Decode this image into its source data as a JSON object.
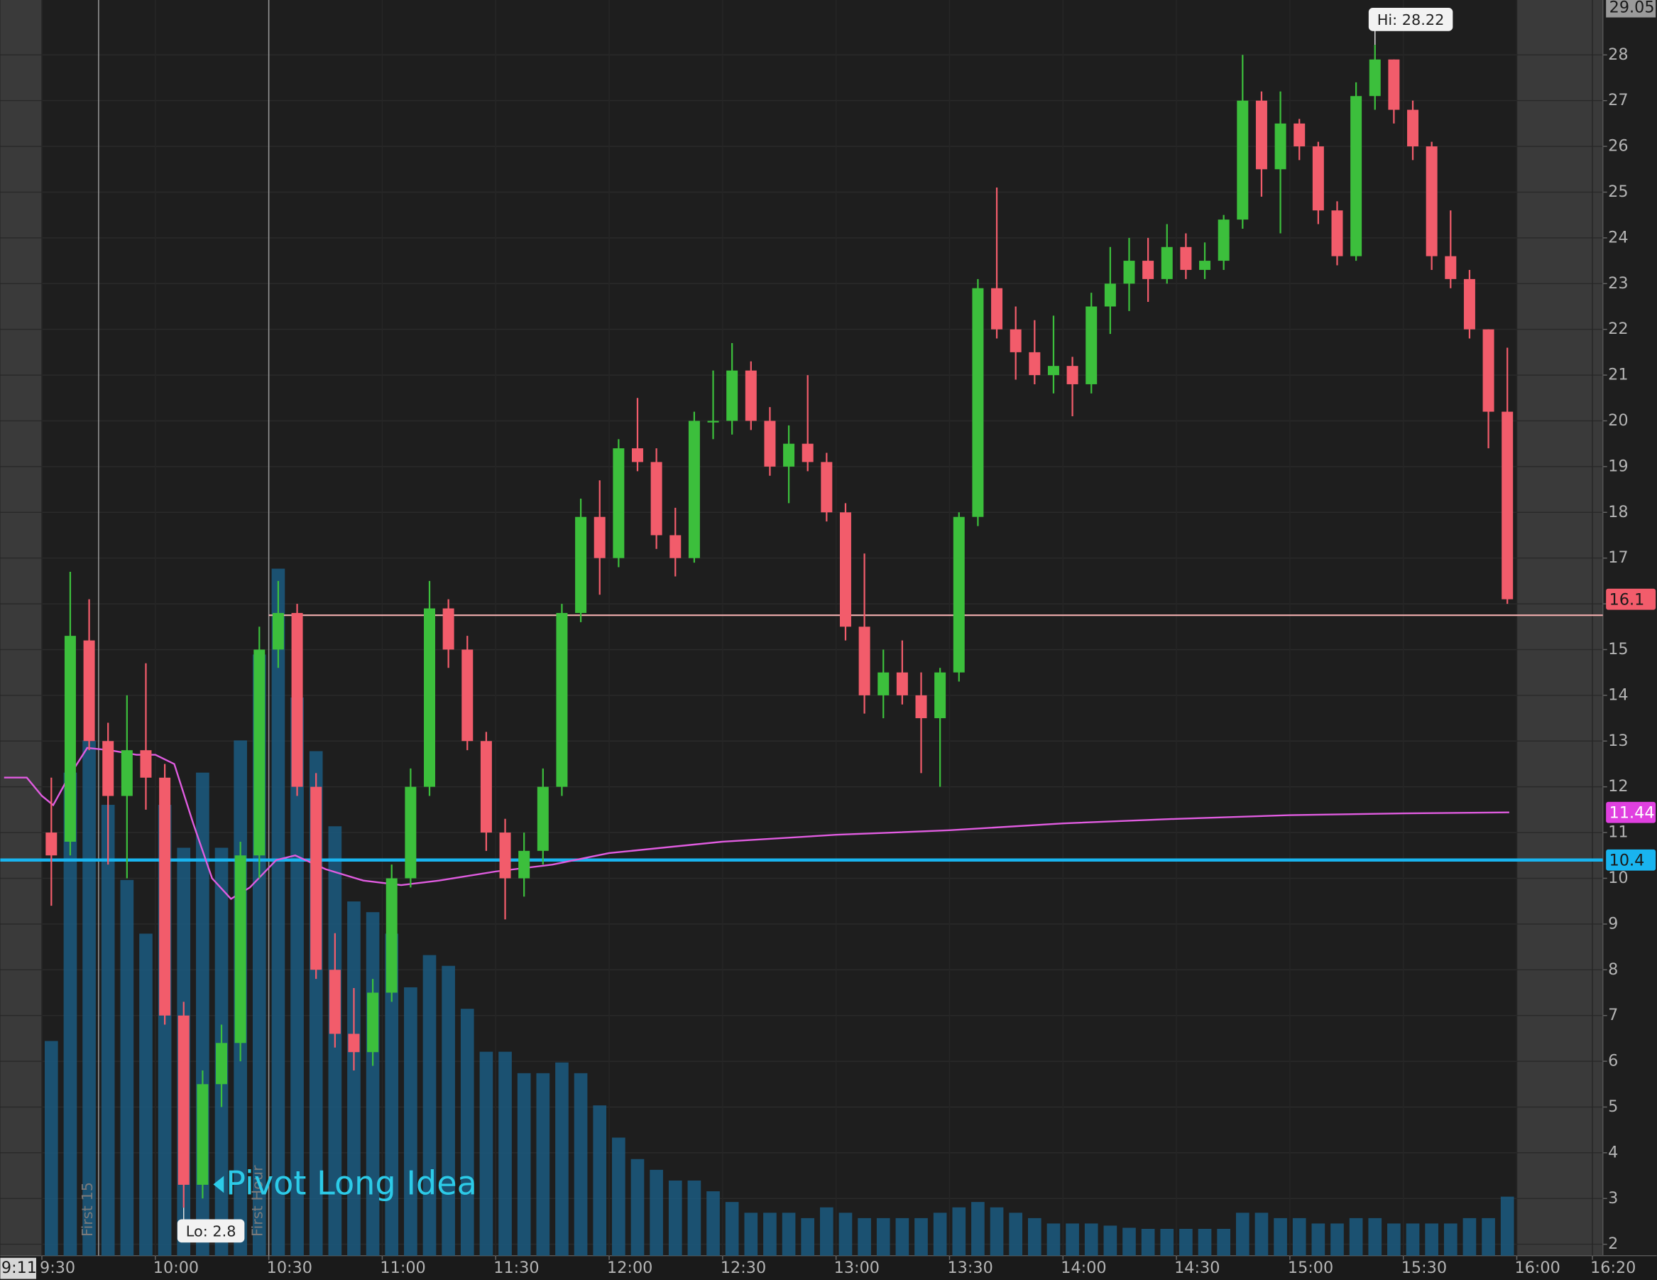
{
  "chart_data": {
    "type": "candlestick",
    "x": [
      "9:30",
      "9:35",
      "9:40",
      "9:45",
      "9:50",
      "9:55",
      "10:00",
      "10:05",
      "10:10",
      "10:15",
      "10:20",
      "10:25",
      "10:30",
      "10:35",
      "10:40",
      "10:45",
      "10:50",
      "10:55",
      "11:00",
      "11:05",
      "11:10",
      "11:15",
      "11:20",
      "11:25",
      "11:30",
      "11:35",
      "11:40",
      "11:45",
      "11:50",
      "11:55",
      "12:00",
      "12:05",
      "12:10",
      "12:15",
      "12:20",
      "12:25",
      "12:30",
      "12:35",
      "12:40",
      "12:45",
      "12:50",
      "12:55",
      "13:00",
      "13:05",
      "13:10",
      "13:15",
      "13:20",
      "13:25",
      "13:30",
      "13:35",
      "13:40",
      "13:45",
      "13:50",
      "13:55",
      "14:00",
      "14:05",
      "14:10",
      "14:15",
      "14:20",
      "14:25",
      "14:30",
      "14:35",
      "14:40",
      "14:45",
      "14:50",
      "14:55",
      "15:00",
      "15:05",
      "15:10",
      "15:15",
      "15:20",
      "15:25",
      "15:30",
      "15:35",
      "15:40",
      "15:45",
      "15:50",
      "15:55"
    ],
    "open": [
      11.0,
      10.8,
      15.2,
      13.0,
      11.8,
      12.8,
      12.2,
      7.0,
      3.3,
      5.5,
      6.4,
      10.5,
      15.0,
      15.8,
      12.0,
      8.0,
      6.6,
      6.2,
      7.5,
      10.0,
      12.0,
      15.9,
      15.0,
      13.0,
      11.0,
      10.0,
      10.6,
      12.0,
      15.8,
      17.9,
      17.0,
      19.4,
      19.1,
      17.5,
      17.0,
      20.0,
      20.0,
      21.1,
      20.0,
      19.0,
      19.5,
      19.1,
      18.0,
      15.5,
      14.0,
      14.5,
      14.0,
      13.5,
      14.5,
      17.9,
      22.9,
      22.0,
      21.5,
      21.0,
      21.2,
      20.8,
      22.5,
      23.0,
      23.5,
      23.1,
      23.8,
      23.3,
      23.5,
      24.4,
      27.0,
      25.5,
      26.5,
      26.0,
      24.6,
      23.6,
      27.1,
      27.9,
      26.8,
      26.0,
      23.6,
      23.1,
      22.0,
      20.2
    ],
    "high": [
      12.2,
      16.7,
      16.1,
      13.4,
      14.0,
      14.7,
      12.5,
      7.3,
      5.8,
      6.8,
      10.8,
      15.5,
      16.5,
      16.0,
      12.3,
      8.8,
      7.6,
      7.8,
      10.3,
      12.4,
      16.5,
      16.1,
      15.3,
      13.2,
      11.3,
      11.0,
      12.4,
      16.0,
      18.3,
      18.7,
      19.6,
      20.5,
      19.4,
      18.1,
      20.2,
      21.1,
      21.7,
      21.3,
      20.3,
      19.9,
      21.0,
      19.3,
      18.2,
      17.1,
      15.0,
      15.2,
      14.5,
      14.6,
      18.0,
      23.1,
      25.1,
      22.5,
      22.2,
      22.3,
      21.4,
      22.8,
      23.8,
      24.0,
      24.0,
      24.3,
      24.1,
      23.9,
      24.5,
      28.0,
      27.2,
      27.2,
      26.6,
      26.1,
      24.8,
      27.4,
      28.22,
      27.9,
      27.0,
      26.1,
      24.6,
      23.3,
      22.0,
      21.6
    ],
    "low": [
      9.4,
      10.5,
      12.8,
      10.3,
      10.0,
      11.5,
      6.8,
      2.8,
      3.0,
      5.0,
      6.0,
      10.0,
      14.6,
      11.8,
      7.8,
      6.3,
      5.8,
      5.9,
      7.3,
      9.8,
      11.8,
      14.6,
      12.8,
      10.6,
      9.1,
      9.6,
      10.3,
      11.8,
      15.6,
      16.2,
      16.8,
      18.9,
      17.2,
      16.6,
      16.9,
      19.6,
      19.7,
      19.8,
      18.8,
      18.2,
      18.9,
      17.8,
      15.2,
      13.6,
      13.5,
      13.8,
      12.3,
      12.0,
      14.3,
      17.7,
      21.8,
      20.9,
      20.8,
      20.6,
      20.1,
      20.6,
      21.9,
      22.4,
      22.6,
      23.0,
      23.1,
      23.1,
      23.3,
      24.2,
      24.9,
      24.1,
      25.7,
      24.3,
      23.4,
      23.5,
      26.8,
      26.5,
      25.7,
      23.3,
      22.9,
      21.8,
      19.4,
      16.0
    ],
    "close": [
      10.5,
      15.3,
      13.0,
      11.8,
      12.8,
      12.2,
      7.0,
      3.3,
      5.5,
      6.4,
      10.5,
      15.0,
      15.8,
      12.0,
      8.0,
      6.6,
      6.2,
      7.5,
      10.0,
      12.0,
      15.9,
      15.0,
      13.0,
      11.0,
      10.0,
      10.6,
      12.0,
      15.8,
      17.9,
      17.0,
      19.4,
      19.1,
      17.5,
      17.0,
      20.0,
      20.0,
      21.1,
      20.0,
      19.0,
      19.5,
      19.1,
      18.0,
      15.5,
      14.0,
      14.5,
      14.0,
      13.5,
      14.5,
      17.9,
      22.9,
      22.0,
      21.5,
      21.0,
      21.2,
      20.8,
      22.5,
      23.0,
      23.5,
      23.1,
      23.8,
      23.3,
      23.5,
      24.4,
      27.0,
      25.5,
      26.5,
      26.0,
      24.6,
      23.6,
      27.1,
      27.9,
      26.8,
      26.0,
      23.6,
      23.1,
      22.0,
      20.2,
      16.1
    ],
    "volume": [
      200,
      450,
      480,
      420,
      350,
      300,
      420,
      380,
      450,
      380,
      480,
      560,
      640,
      520,
      470,
      400,
      330,
      320,
      300,
      250,
      280,
      270,
      230,
      190,
      190,
      170,
      170,
      180,
      170,
      140,
      110,
      90,
      80,
      70,
      70,
      60,
      50,
      40,
      40,
      40,
      35,
      45,
      40,
      35,
      35,
      35,
      35,
      40,
      45,
      50,
      45,
      40,
      35,
      30,
      30,
      30,
      28,
      26,
      25,
      25,
      25,
      25,
      25,
      40,
      40,
      35,
      35,
      30,
      30,
      35,
      35,
      30,
      30,
      30,
      30,
      35,
      35,
      55
    ],
    "up_color": "#3cbf3c",
    "down_color": "#f25c6b",
    "volume_color": "#1b5a80",
    "xlim": [
      "9:19",
      "16:37"
    ],
    "xticks": [
      "9:30",
      "10:00",
      "10:30",
      "11:00",
      "11:30",
      "12:00",
      "12:30",
      "13:00",
      "13:30",
      "14:00",
      "14:30",
      "15:00",
      "15:30",
      "16:00",
      "16:20"
    ],
    "session": [
      "9:30",
      "16:00"
    ],
    "ylim": [
      1.75,
      29.2
    ],
    "yticks": [
      2,
      3,
      4,
      5,
      6,
      7,
      8,
      9,
      10,
      11,
      12,
      13,
      14,
      15,
      16,
      17,
      18,
      19,
      20,
      21,
      22,
      23,
      24,
      25,
      26,
      27,
      28
    ],
    "grid": true,
    "vwap": {
      "color": "#e05ce0",
      "x": [
        "9:20",
        "9:26",
        "9:30",
        "9:33",
        "9:37",
        "9:42",
        "9:48",
        "9:55",
        "10:00",
        "10:05",
        "10:10",
        "10:15",
        "10:20",
        "10:25",
        "10:32",
        "10:37",
        "10:45",
        "10:55",
        "11:05",
        "11:15",
        "11:30",
        "11:45",
        "12:00",
        "12:30",
        "13:00",
        "13:30",
        "14:00",
        "14:30",
        "15:00",
        "15:30",
        "15:58"
      ],
      "values": [
        12.2,
        12.2,
        11.8,
        11.6,
        12.2,
        12.85,
        12.8,
        12.7,
        12.7,
        12.5,
        11.2,
        10.0,
        9.55,
        9.8,
        10.4,
        10.5,
        10.2,
        9.95,
        9.85,
        9.95,
        10.15,
        10.3,
        10.55,
        10.8,
        10.95,
        11.05,
        11.2,
        11.3,
        11.38,
        11.42,
        11.44
      ]
    },
    "levels": [
      {
        "value": 10.4,
        "color": "#19b4ef",
        "from": "9:19"
      },
      {
        "value": 15.75,
        "color": "#e8a8a8",
        "from": "10:30"
      }
    ],
    "price_tags": [
      {
        "value": 16.1,
        "color": "#f25c6b"
      },
      {
        "value": 11.44,
        "color": "#e040e0"
      },
      {
        "value": 10.4,
        "color": "#19b4ef"
      }
    ],
    "cursor_price": 29.05,
    "cursor_time": "9:11",
    "hi": {
      "value": 28.22,
      "label": "Hi: 28.22"
    },
    "lo": {
      "value": 2.8,
      "label": "Lo: 2.8"
    },
    "vlines": [
      {
        "x": "9:45",
        "label": "First 15"
      },
      {
        "x": "10:30",
        "label": "First Hour"
      }
    ],
    "annotation": {
      "text": "Pivot Long Idea",
      "color": "#2ccbe8"
    }
  }
}
